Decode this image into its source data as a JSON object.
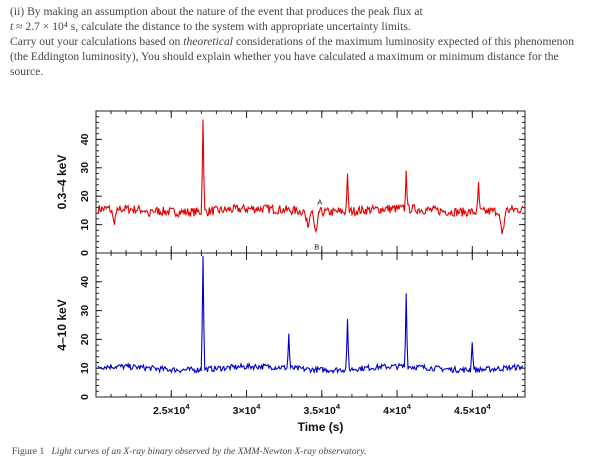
{
  "question": {
    "part": "(ii)",
    "sentence1_before_t": "By making an assumption about the nature of the event that produces the peak flux at",
    "time_symbol": "t",
    "time_value": "≈ 2.7 × 10⁴ s, calculate the distance to the system with appropriate uncertainty limits.",
    "sentence2_before_em": "Carry out your calculations based on",
    "emphasis": "theoretical",
    "sentence2_after_em": "considerations of the maximum luminosity expected of this phenomenon (the Eddington luminosity), You should explain whether you have calculated a maximum or minimum distance for the source."
  },
  "caption": {
    "label": "Figure 1",
    "text": "Light curves of an X-ray binary observed by the XMM-Newton X-ray observatory."
  },
  "chart_data": [
    {
      "type": "line",
      "panel": "top",
      "ylabel": "0.3–4 keV",
      "color": "#e00000",
      "xlim": [
        20000,
        48500
      ],
      "ylim": [
        0,
        50
      ],
      "yticks": [
        0,
        10,
        20,
        30,
        40
      ],
      "baseline": 15,
      "noise": 1.6,
      "events": [
        {
          "t": 27100,
          "peak": 47
        },
        {
          "t": 36700,
          "peak": 28
        },
        {
          "t": 40600,
          "peak": 29
        },
        {
          "t": 45400,
          "peak": 25
        }
      ],
      "dips": [
        {
          "t": 21200,
          "depth": 5
        },
        {
          "t": 23500,
          "depth": 2.5
        },
        {
          "t": 34100,
          "depth": 5
        },
        {
          "t": 34600,
          "depth": 7
        },
        {
          "t": 47000,
          "depth": 8
        }
      ],
      "annotations": [
        {
          "text": "A",
          "t": 34700,
          "y": 17
        },
        {
          "text": "B",
          "t": 34500,
          "y": 1.2
        }
      ]
    },
    {
      "type": "line",
      "panel": "bottom",
      "ylabel": "4–10 keV",
      "color": "#0000cc",
      "xlim": [
        20000,
        48500
      ],
      "ylim": [
        0,
        50
      ],
      "yticks": [
        0,
        10,
        20,
        30,
        40
      ],
      "baseline": 10,
      "noise": 1.0,
      "events": [
        {
          "t": 27100,
          "peak": 49
        },
        {
          "t": 32800,
          "peak": 22
        },
        {
          "t": 36700,
          "peak": 27
        },
        {
          "t": 40600,
          "peak": 36
        },
        {
          "t": 45000,
          "peak": 19
        }
      ],
      "dips": []
    }
  ],
  "x_axis": {
    "title": "Time (s)",
    "ticks": [
      {
        "value": 25000,
        "mantissa": "2.5×10",
        "exp": "4"
      },
      {
        "value": 30000,
        "mantissa": "3×10",
        "exp": "4"
      },
      {
        "value": 35000,
        "mantissa": "3.5×10",
        "exp": "4"
      },
      {
        "value": 40000,
        "mantissa": "4×10",
        "exp": "4"
      },
      {
        "value": 45000,
        "mantissa": "4.5×10",
        "exp": "4"
      }
    ]
  }
}
